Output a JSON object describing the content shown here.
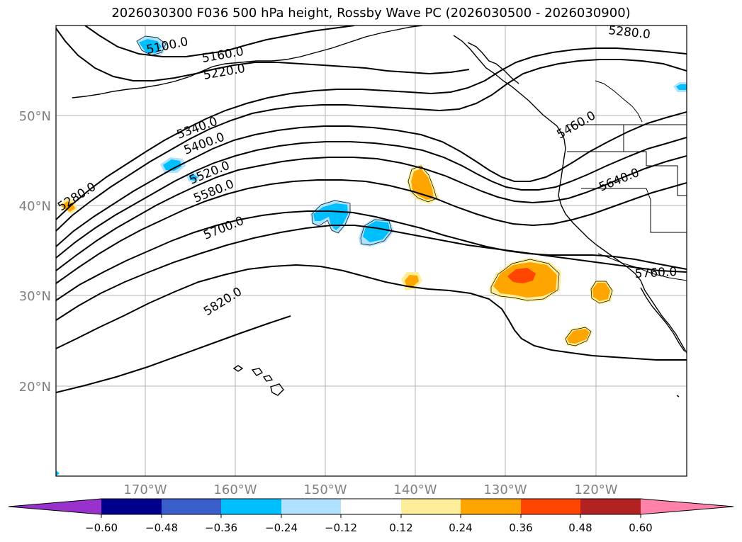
{
  "title": "2026030300 F036 500 hPa height, Rossby Wave PC (2026030500 - 2026030900)",
  "latitude_labels": [
    "50°N",
    "40°N",
    "30°N",
    "20°N"
  ],
  "longitude_labels": [
    "170°W",
    "160°W",
    "150°W",
    "140°W",
    "130°W",
    "120°W"
  ],
  "contour_labels": [
    "5100.0",
    "5160.0",
    "5220.0",
    "5280.0",
    "5280.0",
    "5340.0",
    "5400.0",
    "5520.0",
    "5580.0",
    "5700.0",
    "5820.0",
    "5460.0",
    "5640.0",
    "5760.0"
  ],
  "colorbar": {
    "ticks": [
      "−0.60",
      "−0.48",
      "−0.36",
      "−0.24",
      "−0.12",
      "0.12",
      "0.24",
      "0.36",
      "0.48",
      "0.60"
    ],
    "colors": [
      "#9932cc",
      "#00008b",
      "#3a5fcd",
      "#00bfff",
      "#b0e2ff",
      "#ffffff",
      "#ffee99",
      "#ffa500",
      "#ff4500",
      "#b22222",
      "#ff82ab"
    ]
  },
  "colors": {
    "positive_fill": "#ffa500",
    "positive_strong": "#ff4500",
    "positive_weak": "#ffee99",
    "negative_fill": "#00bfff",
    "negative_weak": "#b0e2ff"
  }
}
